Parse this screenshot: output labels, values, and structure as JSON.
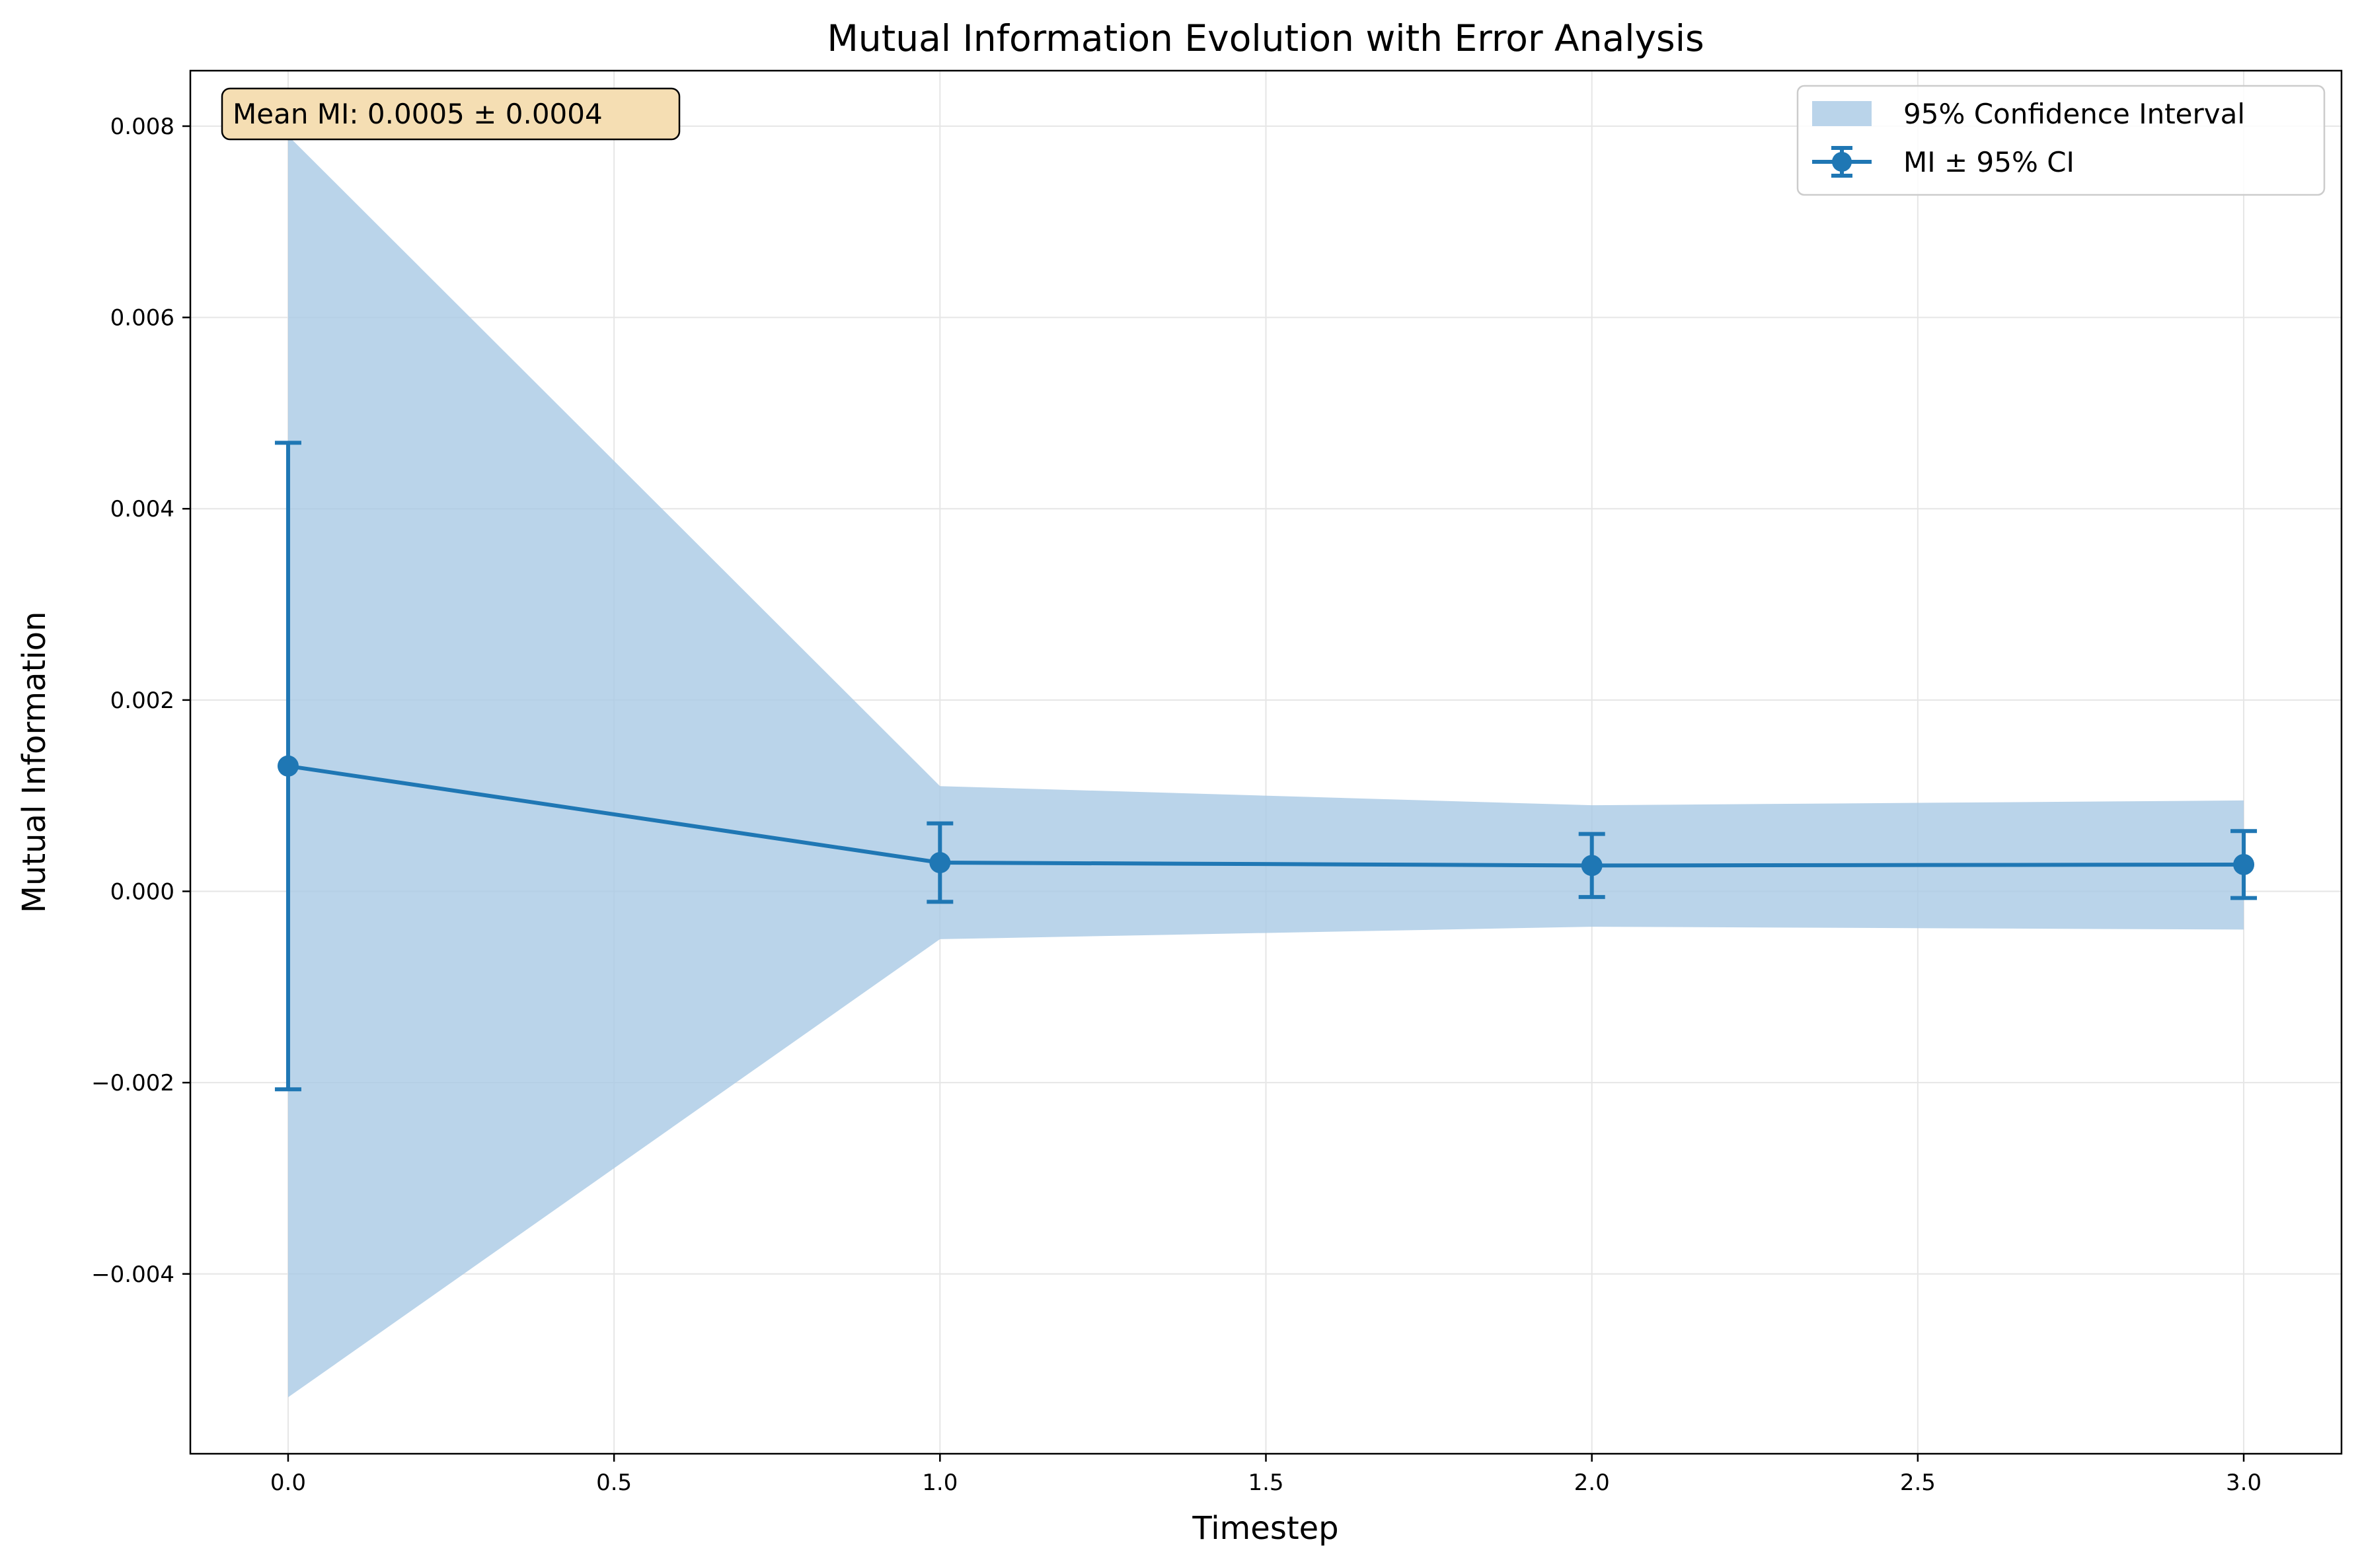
{
  "chart_data": {
    "type": "line",
    "title": "Mutual Information Evolution with Error Analysis",
    "xlabel": "Timestep",
    "ylabel": "Mutual Information",
    "xlim": [
      -0.15,
      3.15
    ],
    "ylim": [
      -0.00588,
      0.00858
    ],
    "x_ticks": [
      0.0,
      0.5,
      1.0,
      1.5,
      2.0,
      2.5,
      3.0
    ],
    "x_tick_labels": [
      "0.0",
      "0.5",
      "1.0",
      "1.5",
      "2.0",
      "2.5",
      "3.0"
    ],
    "y_ticks": [
      -0.004,
      -0.002,
      0.0,
      0.002,
      0.004,
      0.006,
      0.008
    ],
    "y_tick_labels": [
      "−0.004",
      "−0.002",
      "0.000",
      "0.002",
      "0.004",
      "0.006",
      "0.008"
    ],
    "grid": true,
    "legend_position": "top-right",
    "series": [
      {
        "name": "MI ± 95% CI",
        "x": [
          0,
          1,
          2,
          3
        ],
        "y": [
          0.00131,
          0.0003,
          0.00027,
          0.00028
        ],
        "err_low": [
          -0.00207,
          -0.00011,
          -6e-05,
          -7e-05
        ],
        "err_high": [
          0.00469,
          0.00071,
          0.0006,
          0.00063
        ],
        "color": "#1f77b4"
      }
    ],
    "band": {
      "name": "95% Confidence Interval",
      "x": [
        0,
        1,
        2,
        3
      ],
      "lower": [
        -0.00529,
        -0.0005,
        -0.00037,
        -0.0004
      ],
      "upper": [
        0.0079,
        0.0011,
        0.0009,
        0.00095
      ],
      "color": "#a6c8e4"
    },
    "annotation": {
      "text": "Mean MI: 0.0005 ± 0.0004",
      "position": "top-left",
      "box_color": "#f5deb3"
    }
  }
}
